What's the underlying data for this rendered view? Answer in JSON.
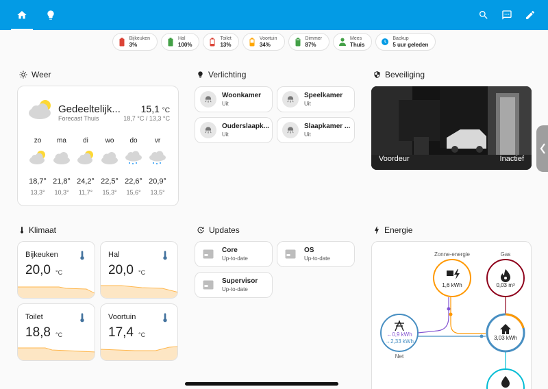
{
  "chips": [
    {
      "label": "Bijkeuken",
      "value": "3%",
      "icon": "battery-low-icon",
      "color": "#db4437"
    },
    {
      "label": "Hal",
      "value": "100%",
      "icon": "battery-full-icon",
      "color": "#43a047"
    },
    {
      "label": "Toilet",
      "value": "13%",
      "icon": "battery-low-icon",
      "color": "#db4437"
    },
    {
      "label": "Voortuin",
      "value": "34%",
      "icon": "battery-medium-icon",
      "color": "#ffa600"
    },
    {
      "label": "Dimmer",
      "value": "87%",
      "icon": "battery-high-icon",
      "color": "#43a047"
    },
    {
      "label": "Mees",
      "value": "Thuis",
      "icon": "person-icon",
      "color": "#43a047"
    },
    {
      "label": "Backup",
      "value": "5 uur geleden",
      "icon": "clock-icon",
      "color": "#039be5"
    }
  ],
  "sections": {
    "weer": "Weer",
    "verlichting": "Verlichting",
    "beveiliging": "Beveiliging",
    "klimaat": "Klimaat",
    "updates": "Updates",
    "energie": "Energie"
  },
  "weather": {
    "condition": "Gedeeltelijk...",
    "source": "Forecast Thuis",
    "temp": "15,1",
    "unit": "°C",
    "range": "18,7 °C / 13,3 °C",
    "forecast": [
      {
        "day": "zo",
        "hi": "18,7°",
        "lo": "13,3°",
        "icon": "partly-cloudy-icon"
      },
      {
        "day": "ma",
        "hi": "21,8°",
        "lo": "10,3°",
        "icon": "cloudy-icon"
      },
      {
        "day": "di",
        "hi": "24,2°",
        "lo": "11,7°",
        "icon": "partly-cloudy-icon"
      },
      {
        "day": "wo",
        "hi": "22,5°",
        "lo": "15,3°",
        "icon": "cloudy-icon"
      },
      {
        "day": "do",
        "hi": "22,6°",
        "lo": "15,6°",
        "icon": "rainy-icon"
      },
      {
        "day": "vr",
        "hi": "20,9°",
        "lo": "13,5°",
        "icon": "rainy-icon"
      }
    ]
  },
  "lights": [
    {
      "name": "Woonkamer",
      "state": "Uit"
    },
    {
      "name": "Speelkamer",
      "state": "Uit"
    },
    {
      "name": "Ouderslaapk...",
      "state": "Uit"
    },
    {
      "name": "Slaapkamer ...",
      "state": "Uit"
    }
  ],
  "camera": {
    "name": "Voordeur",
    "state": "Inactief"
  },
  "climate": [
    {
      "name": "Bijkeuken",
      "value": "20,0",
      "unit": "°C"
    },
    {
      "name": "Hal",
      "value": "20,0",
      "unit": "°C"
    },
    {
      "name": "Toilet",
      "value": "18,8",
      "unit": "°C"
    },
    {
      "name": "Voortuin",
      "value": "17,4",
      "unit": "°C"
    }
  ],
  "updates": [
    {
      "name": "Core",
      "state": "Up-to-date"
    },
    {
      "name": "OS",
      "state": "Up-to-date"
    },
    {
      "name": "Supervisor",
      "state": "Up-to-date"
    }
  ],
  "energy": {
    "solar_label": "Zonne-energie",
    "solar_value": "1,6 kWh",
    "gas_label": "Gas",
    "gas_value": "0,03 m³",
    "grid_label": "Net",
    "grid_in": "←0,9 kWh",
    "grid_out": "→2,33 kWh",
    "home_value": "3,03 kWh"
  },
  "colors": {
    "header": "#039be5",
    "solar": "#ff9800",
    "gas": "#8e021b",
    "grid": "#488fc2",
    "return": "#8353d1",
    "water": "#00bcd4",
    "sensor_graph": "#fde6c4"
  }
}
